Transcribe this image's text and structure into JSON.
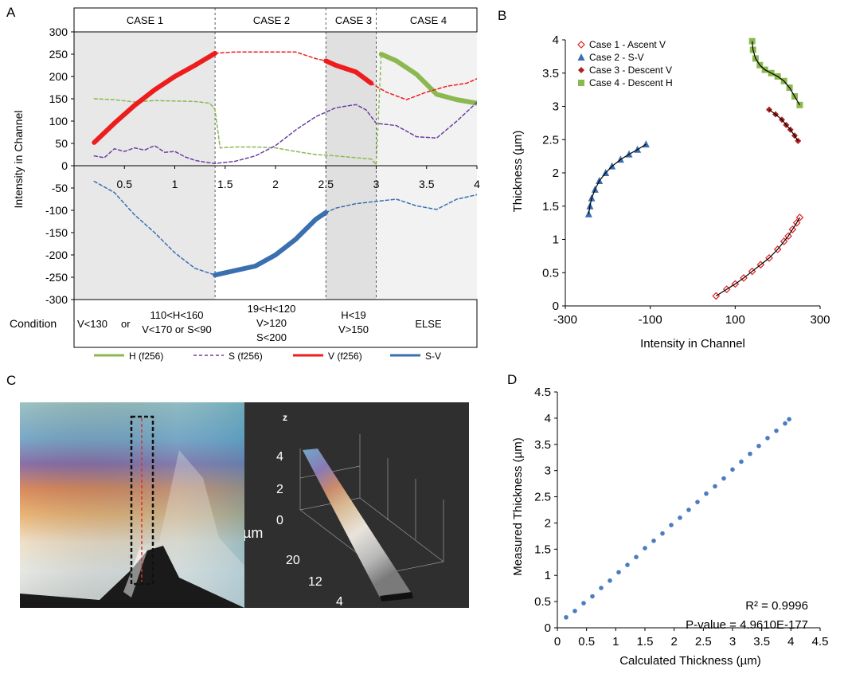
{
  "panel_labels": {
    "a": "A",
    "b": "B",
    "c": "C",
    "d": "D"
  },
  "panel_a": {
    "cases": [
      "CASE 1",
      "CASE 2",
      "CASE 3",
      "CASE 4"
    ],
    "condition_label": "Condition",
    "conditions": [
      [
        "V<130",
        "or"
      ],
      [
        "110<H<160",
        "V<170 or S<90"
      ],
      [
        "19<H<120",
        "V>120",
        "S<200"
      ],
      [
        "H<19",
        "V>150"
      ],
      [
        "ELSE"
      ]
    ],
    "legend": [
      "H (f256)",
      "S (f256)",
      "V (f256)",
      "S-V"
    ],
    "colors": {
      "H": "#8cb850",
      "S": "#6a3fa0",
      "V": "#ee1d1d",
      "SV": "#3a6fb0"
    }
  },
  "panel_c": {
    "axis_z": "z",
    "z_ticks": [
      "4",
      "2",
      "0"
    ],
    "unit": "µm",
    "depth_ticks": [
      "20",
      "12",
      "4"
    ]
  },
  "chart_data": [
    {
      "type": "line",
      "panel": "A",
      "xlim": [
        0,
        4
      ],
      "ylim": [
        -300,
        300
      ],
      "ylabel": "Intensity in Channel",
      "xticks": [
        "0.5",
        "1",
        "1.5",
        "2",
        "2.5",
        "3",
        "3.5",
        "4"
      ],
      "yticks": [
        "300",
        "250",
        "200",
        "150",
        "100",
        "50",
        "0",
        "-50",
        "-100",
        "-150",
        "-200",
        "-250",
        "-300"
      ],
      "case_boundaries": [
        1.4,
        2.5,
        3.0
      ],
      "series": [
        {
          "name": "H (f256)",
          "x": [
            0.2,
            0.4,
            0.6,
            0.8,
            1.0,
            1.2,
            1.35,
            1.4,
            1.45,
            1.6,
            1.8,
            2.0,
            2.2,
            2.4,
            2.6,
            2.8,
            2.95,
            3.0,
            3.05,
            3.2,
            3.4,
            3.6,
            3.8,
            4.0
          ],
          "y": [
            150,
            148,
            143,
            146,
            145,
            144,
            140,
            125,
            40,
            42,
            42,
            40,
            32,
            25,
            22,
            18,
            15,
            3,
            250,
            235,
            205,
            160,
            148,
            140
          ]
        },
        {
          "name": "S (f256)",
          "x": [
            0.2,
            0.3,
            0.4,
            0.5,
            0.6,
            0.7,
            0.8,
            0.9,
            1.0,
            1.1,
            1.2,
            1.3,
            1.4,
            1.6,
            1.8,
            2.0,
            2.2,
            2.4,
            2.6,
            2.8,
            2.9,
            3.0,
            3.2,
            3.4,
            3.6,
            3.8,
            4.0
          ],
          "y": [
            22,
            18,
            38,
            32,
            40,
            35,
            45,
            30,
            32,
            20,
            12,
            8,
            5,
            10,
            22,
            45,
            80,
            110,
            130,
            137,
            125,
            95,
            90,
            65,
            62,
            100,
            142
          ]
        },
        {
          "name": "V (f256)",
          "x": [
            0.2,
            0.4,
            0.6,
            0.8,
            1.0,
            1.2,
            1.4,
            1.6,
            1.8,
            2.0,
            2.2,
            2.4,
            2.5,
            2.6,
            2.8,
            2.95,
            3.0,
            3.1,
            3.3,
            3.5,
            3.7,
            3.9,
            4.0
          ],
          "y": [
            52,
            95,
            135,
            170,
            200,
            225,
            252,
            255,
            255,
            255,
            255,
            240,
            235,
            225,
            210,
            185,
            178,
            165,
            148,
            165,
            178,
            185,
            195
          ]
        },
        {
          "name": "S-V",
          "x": [
            0.2,
            0.4,
            0.6,
            0.8,
            1.0,
            1.2,
            1.4,
            1.6,
            1.8,
            2.0,
            2.2,
            2.4,
            2.5,
            2.6,
            2.8,
            3.0,
            3.2,
            3.4,
            3.6,
            3.8,
            4.0
          ],
          "y": [
            -35,
            -60,
            -110,
            -150,
            -195,
            -230,
            -245,
            -235,
            -225,
            -200,
            -165,
            -120,
            -105,
            -95,
            -85,
            -80,
            -75,
            -90,
            -98,
            -75,
            -65
          ]
        }
      ]
    },
    {
      "type": "scatter",
      "panel": "B",
      "xlabel": "Intensity in Channel",
      "ylabel": "Thickness (µm)",
      "xlim": [
        -300,
        300
      ],
      "ylim": [
        0,
        4
      ],
      "xticks": [
        "-300",
        "-100",
        "100",
        "300"
      ],
      "yticks": [
        "4",
        "3.5",
        "3",
        "2.5",
        "2",
        "1.5",
        "1",
        "0.5",
        "0"
      ],
      "series": [
        {
          "name": "Case 1 - Ascent V",
          "x": [
            55,
            80,
            100,
            120,
            140,
            160,
            180,
            200,
            215,
            225,
            235,
            245,
            252
          ],
          "y": [
            0.15,
            0.25,
            0.33,
            0.42,
            0.52,
            0.62,
            0.72,
            0.85,
            0.97,
            1.05,
            1.15,
            1.25,
            1.33
          ]
        },
        {
          "name": "Case 2 - S-V",
          "x": [
            -245,
            -242,
            -238,
            -230,
            -220,
            -205,
            -190,
            -170,
            -150,
            -130,
            -110
          ],
          "y": [
            1.38,
            1.5,
            1.62,
            1.75,
            1.88,
            2.0,
            2.1,
            2.2,
            2.28,
            2.35,
            2.43
          ]
        },
        {
          "name": "Case 3 - Descent V",
          "x": [
            180,
            195,
            210,
            220,
            230,
            240,
            248
          ],
          "y": [
            2.95,
            2.88,
            2.8,
            2.72,
            2.65,
            2.56,
            2.48
          ]
        },
        {
          "name": "Case 4 - Descent H",
          "x": [
            140,
            142,
            148,
            158,
            170,
            185,
            200,
            215,
            228,
            240,
            252
          ],
          "y": [
            3.98,
            3.85,
            3.72,
            3.62,
            3.55,
            3.5,
            3.45,
            3.38,
            3.28,
            3.15,
            3.02
          ]
        }
      ]
    },
    {
      "type": "scatter",
      "panel": "D",
      "xlabel": "Calculated Thickness (µm)",
      "ylabel": "Measured Thickness (µm)",
      "xlim": [
        0,
        4.5
      ],
      "ylim": [
        0,
        4.5
      ],
      "xticks": [
        "0",
        "0.5",
        "1",
        "1.5",
        "2",
        "2.5",
        "3",
        "3.5",
        "4",
        "4.5"
      ],
      "yticks": [
        "4.5",
        "4",
        "3.5",
        "3",
        "2.5",
        "2",
        "1.5",
        "1",
        "0.5",
        "0"
      ],
      "annotations": [
        "R² = 0.9996",
        "P-value = 4.9610E-177"
      ],
      "series": [
        {
          "name": "",
          "x": [
            0.15,
            0.3,
            0.45,
            0.6,
            0.75,
            0.9,
            1.05,
            1.2,
            1.35,
            1.5,
            1.65,
            1.8,
            1.95,
            2.1,
            2.25,
            2.4,
            2.55,
            2.7,
            2.85,
            3.0,
            3.15,
            3.3,
            3.45,
            3.6,
            3.75,
            3.9,
            3.97
          ],
          "y": [
            0.2,
            0.32,
            0.47,
            0.6,
            0.76,
            0.9,
            1.06,
            1.2,
            1.35,
            1.52,
            1.66,
            1.8,
            1.96,
            2.1,
            2.25,
            2.4,
            2.56,
            2.7,
            2.85,
            3.02,
            3.17,
            3.32,
            3.47,
            3.62,
            3.76,
            3.9,
            3.98
          ]
        }
      ]
    }
  ]
}
